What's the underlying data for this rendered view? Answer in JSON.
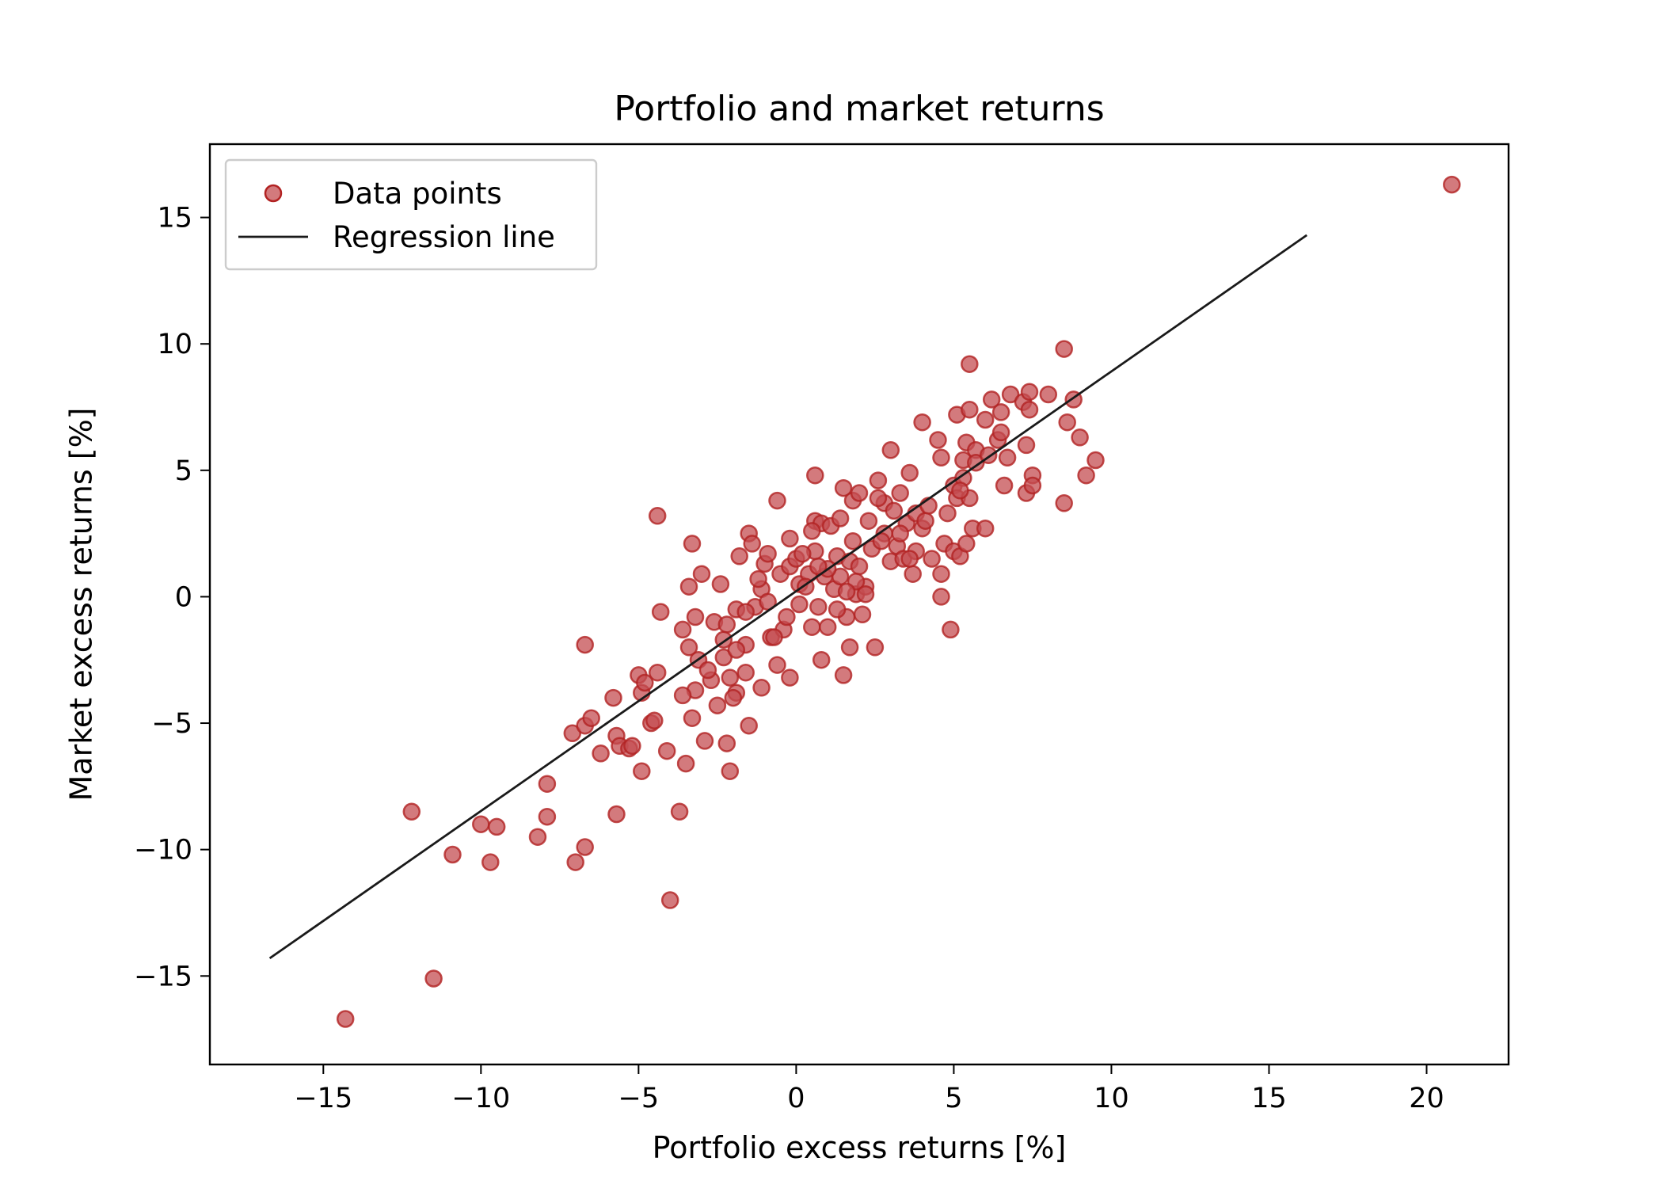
{
  "chart_data": {
    "type": "scatter",
    "title": "Portfolio and market returns",
    "xlabel": "Portfolio excess returns [%]",
    "ylabel": "Market excess returns [%]",
    "xlim": [
      -18.6,
      22.6
    ],
    "ylim": [
      -18.5,
      17.9
    ],
    "xticks": [
      -15,
      -10,
      -5,
      0,
      5,
      10,
      15,
      20
    ],
    "yticks": [
      -15,
      -10,
      -5,
      0,
      5,
      10,
      15
    ],
    "grid": false,
    "legend_position": "top-left",
    "legend": [
      "Data points",
      "Regression line"
    ],
    "colors": {
      "points_fill": "#c44e52",
      "points_edge": "#b22222",
      "line": "#1a1a1a",
      "axes": "#000000"
    },
    "series": [
      {
        "name": "Data points",
        "kind": "scatter",
        "points": [
          [
            20.8,
            16.3
          ],
          [
            -14.3,
            -16.7
          ],
          [
            -11.5,
            -15.1
          ],
          [
            -12.2,
            -8.5
          ],
          [
            -10.9,
            -10.2
          ],
          [
            -10,
            -9
          ],
          [
            -9.7,
            -10.5
          ],
          [
            -9.5,
            -9.1
          ],
          [
            -8.2,
            -9.5
          ],
          [
            -7.9,
            -7.4
          ],
          [
            -7.9,
            -8.7
          ],
          [
            -7,
            -10.5
          ],
          [
            -7.1,
            -5.4
          ],
          [
            -6.7,
            -9.9
          ],
          [
            -6.7,
            -5.1
          ],
          [
            -6.5,
            -4.8
          ],
          [
            -6.2,
            -6.2
          ],
          [
            -5.7,
            -5.5
          ],
          [
            -5.6,
            -5.9
          ],
          [
            -5.7,
            -8.6
          ],
          [
            -5.3,
            -6
          ],
          [
            -5.2,
            -5.9
          ],
          [
            -5,
            -3.1
          ],
          [
            -4.9,
            -3.8
          ],
          [
            -4.9,
            -6.9
          ],
          [
            -4.6,
            -5
          ],
          [
            -4.5,
            -4.9
          ],
          [
            -4.4,
            -3
          ],
          [
            -4.1,
            -6.1
          ],
          [
            -4,
            -12
          ],
          [
            -3.7,
            -8.5
          ],
          [
            -3.5,
            -6.6
          ],
          [
            -3.3,
            -4.8
          ],
          [
            -3.2,
            -3.7
          ],
          [
            -2.9,
            -5.7
          ],
          [
            -2.7,
            -3.3
          ],
          [
            -2.5,
            -4.3
          ],
          [
            -2.2,
            -5.8
          ],
          [
            -2.1,
            -6.9
          ],
          [
            -1.9,
            -3.8
          ],
          [
            -1.5,
            -5.1
          ],
          [
            -1.1,
            -3.6
          ],
          [
            -0.6,
            -2.7
          ],
          [
            -0.2,
            -3.2
          ],
          [
            -4.3,
            -0.6
          ],
          [
            -4.4,
            3.2
          ],
          [
            -6.7,
            -1.9
          ],
          [
            -3.3,
            2.1
          ],
          [
            -3.2,
            -0.8
          ],
          [
            -3.6,
            -1.3
          ],
          [
            -3.4,
            0.4
          ],
          [
            -3.4,
            -2
          ],
          [
            -3.1,
            -2.5
          ],
          [
            -3,
            0.9
          ],
          [
            -2.6,
            -1
          ],
          [
            -2.4,
            0.5
          ],
          [
            -2.3,
            -2.4
          ],
          [
            -2.2,
            -1.1
          ],
          [
            -2.1,
            -3.2
          ],
          [
            -1.9,
            -0.5
          ],
          [
            -1.8,
            1.6
          ],
          [
            -1.6,
            -3
          ],
          [
            -1.6,
            -1.9
          ],
          [
            -1.5,
            2.5
          ],
          [
            -1.4,
            2.1
          ],
          [
            -1.3,
            -0.4
          ],
          [
            -1.1,
            0.3
          ],
          [
            -1,
            1.3
          ],
          [
            -0.9,
            1.7
          ],
          [
            -0.8,
            -1.6
          ],
          [
            -0.6,
            3.8
          ],
          [
            -0.5,
            0.9
          ],
          [
            -0.4,
            -1.3
          ],
          [
            -0.3,
            -0.8
          ],
          [
            -0.2,
            1.2
          ],
          [
            0,
            1.5
          ],
          [
            0.1,
            -0.3
          ],
          [
            0.1,
            0.5
          ],
          [
            0.4,
            0.9
          ],
          [
            0.5,
            -1.2
          ],
          [
            0.6,
            4.8
          ],
          [
            0.6,
            3
          ],
          [
            0.6,
            1.8
          ],
          [
            0.7,
            -0.4
          ],
          [
            0.8,
            2.9
          ],
          [
            0.8,
            -2.5
          ],
          [
            0.9,
            0.8
          ],
          [
            1,
            -1.2
          ],
          [
            1.1,
            2.8
          ],
          [
            1.2,
            0.3
          ],
          [
            1.3,
            1.6
          ],
          [
            1.4,
            3.1
          ],
          [
            1.4,
            0.8
          ],
          [
            1.5,
            -3.1
          ],
          [
            1.5,
            4.3
          ],
          [
            1.6,
            -0.8
          ],
          [
            1.7,
            1.4
          ],
          [
            1.7,
            -2
          ],
          [
            1.8,
            2.2
          ],
          [
            1.8,
            3.8
          ],
          [
            1.9,
            0.1
          ],
          [
            2,
            1.2
          ],
          [
            2,
            4.1
          ],
          [
            2.1,
            -0.7
          ],
          [
            2.2,
            0.4
          ],
          [
            2.3,
            3
          ],
          [
            2.4,
            1.9
          ],
          [
            2.5,
            -2
          ],
          [
            2.6,
            4.6
          ],
          [
            2.8,
            2.5
          ],
          [
            2.8,
            3.7
          ],
          [
            3,
            5.8
          ],
          [
            3,
            1.4
          ],
          [
            3.1,
            3.4
          ],
          [
            3.2,
            2
          ],
          [
            3.3,
            4.1
          ],
          [
            3.4,
            1.5
          ],
          [
            3.5,
            2.9
          ],
          [
            3.6,
            4.9
          ],
          [
            3.7,
            0.9
          ],
          [
            3.8,
            3.3
          ],
          [
            3.8,
            1.8
          ],
          [
            4,
            6.9
          ],
          [
            4,
            2.7
          ],
          [
            4.2,
            3.6
          ],
          [
            4.3,
            1.5
          ],
          [
            4.5,
            6.2
          ],
          [
            4.6,
            0.9
          ],
          [
            4.6,
            0
          ],
          [
            4.7,
            2.1
          ],
          [
            4.8,
            3.3
          ],
          [
            4.9,
            -1.3
          ],
          [
            5,
            1.8
          ],
          [
            5,
            4.4
          ],
          [
            5.1,
            3.9
          ],
          [
            5.1,
            7.2
          ],
          [
            5.2,
            1.6
          ],
          [
            5.3,
            5.4
          ],
          [
            5.3,
            4.7
          ],
          [
            5.4,
            6.1
          ],
          [
            5.4,
            2.1
          ],
          [
            5.5,
            7.4
          ],
          [
            5.5,
            9.2
          ],
          [
            5.5,
            3.9
          ],
          [
            5.6,
            2.7
          ],
          [
            5.7,
            5.8
          ],
          [
            5.7,
            5.3
          ],
          [
            6,
            7
          ],
          [
            6,
            2.7
          ],
          [
            6.2,
            7.8
          ],
          [
            6.4,
            6.2
          ],
          [
            6.5,
            6.5
          ],
          [
            6.5,
            7.3
          ],
          [
            6.6,
            4.4
          ],
          [
            6.7,
            5.5
          ],
          [
            6.8,
            8
          ],
          [
            7.2,
            7.7
          ],
          [
            7.3,
            4.1
          ],
          [
            7.3,
            6
          ],
          [
            7.4,
            8.1
          ],
          [
            7.4,
            7.4
          ],
          [
            7.5,
            4.8
          ],
          [
            7.5,
            4.4
          ],
          [
            8,
            8
          ],
          [
            8.5,
            3.7
          ],
          [
            8.5,
            9.8
          ],
          [
            8.6,
            6.9
          ],
          [
            8.8,
            7.8
          ],
          [
            9,
            6.3
          ],
          [
            9.2,
            4.8
          ],
          [
            9.5,
            5.4
          ],
          [
            -2,
            -4
          ],
          [
            -0.7,
            -1.6
          ],
          [
            0.3,
            0.4
          ],
          [
            1.9,
            0.6
          ],
          [
            3.3,
            2.5
          ],
          [
            0.2,
            1.7
          ],
          [
            -0.2,
            2.3
          ],
          [
            1,
            1.1
          ],
          [
            -1.2,
            0.7
          ],
          [
            2.6,
            3.9
          ],
          [
            4.1,
            3
          ],
          [
            4.6,
            5.5
          ],
          [
            -2.8,
            -2.9
          ],
          [
            -1.6,
            -0.6
          ],
          [
            0.5,
            2.6
          ],
          [
            1.6,
            0.2
          ],
          [
            2.2,
            0.1
          ],
          [
            -0.9,
            -0.2
          ],
          [
            3.6,
            1.5
          ],
          [
            -3.6,
            -3.9
          ],
          [
            -1.9,
            -2.1
          ],
          [
            0.7,
            1.2
          ],
          [
            1.3,
            -0.5
          ],
          [
            2.7,
            2.2
          ],
          [
            5.2,
            4.2
          ],
          [
            6.1,
            5.6
          ],
          [
            -4.8,
            -3.4
          ],
          [
            -5.8,
            -4
          ],
          [
            -2.3,
            -1.7
          ]
        ]
      },
      {
        "name": "Regression line",
        "kind": "line",
        "points": [
          [
            -16.7,
            -14.3
          ],
          [
            16.2,
            14.3
          ]
        ]
      }
    ]
  }
}
